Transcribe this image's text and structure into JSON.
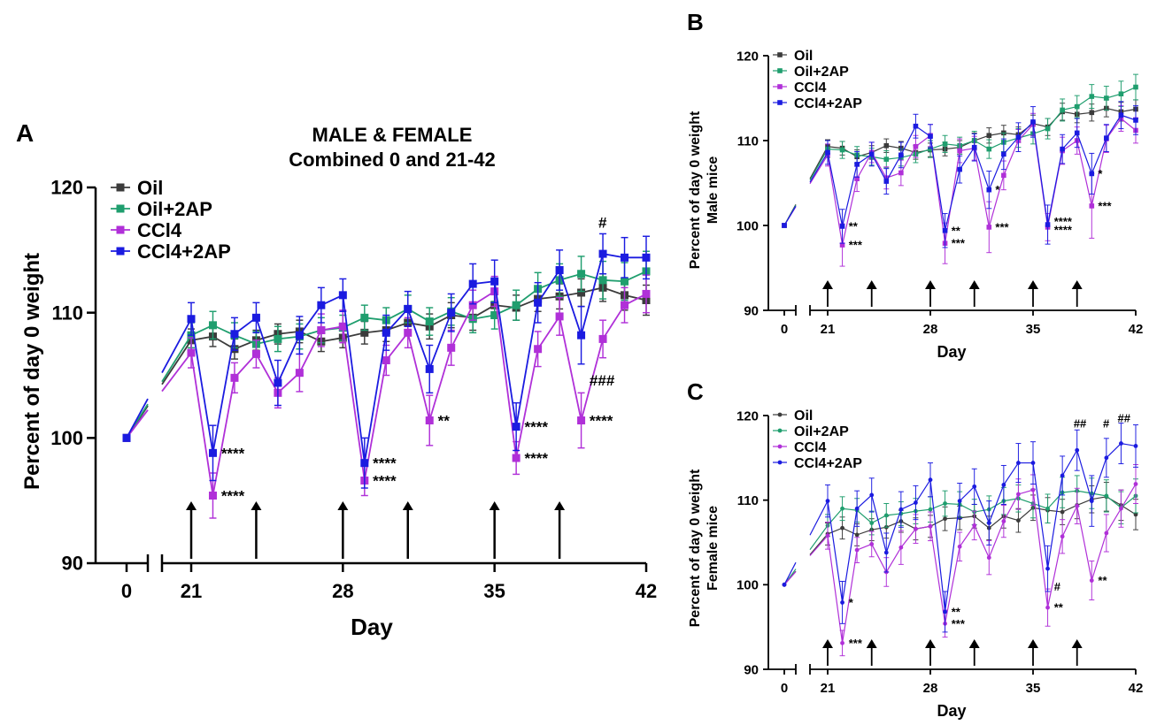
{
  "colors": {
    "Oil": "#3b3b3b",
    "Oil+2AP": "#1f9e6e",
    "CCl4": "#b030d8",
    "CCl4+2AP": "#1b1be0",
    "black": "#000000"
  },
  "chart_data": [
    {
      "id": "A",
      "type": "line",
      "panel_label": "A",
      "title": "MALE & FEMALE",
      "subtitle": "Combined 0 and 21-42",
      "xlabel": "Day",
      "ylabel": "Percent of day 0 weight",
      "ylim": [
        90,
        120
      ],
      "yticks": [
        90,
        100,
        110,
        120
      ],
      "xticks": [
        0,
        21,
        28,
        35,
        42
      ],
      "x_axis_break": "between 0 and 21",
      "marker": "square",
      "grid": false,
      "legend_position": "top-left",
      "arrow_days": [
        21,
        24,
        28,
        31,
        35,
        38
      ],
      "x": [
        0,
        21,
        22,
        23,
        24,
        25,
        26,
        27,
        28,
        29,
        30,
        31,
        32,
        33,
        34,
        35,
        36,
        37,
        38,
        39,
        40,
        41,
        42
      ],
      "series": [
        {
          "name": "Oil",
          "values": [
            100,
            107.8,
            108.1,
            107.1,
            107.8,
            108.3,
            108.5,
            107.7,
            108.0,
            108.4,
            108.6,
            109.2,
            108.9,
            109.8,
            109.6,
            110.6,
            110.4,
            111.1,
            111.3,
            111.6,
            112.0,
            111.4,
            111.0
          ],
          "errors": [
            0,
            0.9,
            0.8,
            0.8,
            0.8,
            0.8,
            0.9,
            0.8,
            0.8,
            0.9,
            0.9,
            0.9,
            1.0,
            1.0,
            1.0,
            1.0,
            1.0,
            1.0,
            1.0,
            1.1,
            1.1,
            1.2,
            1.2
          ]
        },
        {
          "name": "Oil+2AP",
          "values": [
            100,
            108.2,
            109.0,
            108.2,
            107.5,
            107.9,
            108.1,
            108.6,
            108.8,
            109.6,
            109.4,
            110.3,
            109.3,
            110.1,
            109.5,
            109.8,
            110.6,
            111.9,
            112.6,
            113.1,
            112.6,
            112.5,
            113.3
          ],
          "errors": [
            0,
            1.0,
            1.1,
            1.0,
            1.0,
            1.0,
            1.0,
            1.0,
            1.0,
            1.0,
            1.0,
            1.1,
            1.1,
            1.1,
            1.1,
            1.1,
            1.2,
            1.3,
            1.3,
            1.4,
            1.5,
            1.5,
            1.6
          ]
        },
        {
          "name": "CCl4",
          "values": [
            100,
            106.8,
            95.4,
            104.8,
            106.7,
            103.6,
            105.2,
            108.6,
            108.9,
            96.6,
            106.2,
            108.4,
            101.4,
            107.2,
            110.6,
            111.7,
            98.4,
            107.1,
            109.7,
            101.4,
            107.9,
            110.6,
            111.5
          ],
          "errors": [
            0,
            1.2,
            1.8,
            1.2,
            1.1,
            1.2,
            1.5,
            1.3,
            1.3,
            1.2,
            1.2,
            1.2,
            2.0,
            1.4,
            1.2,
            1.2,
            1.3,
            1.4,
            1.5,
            2.2,
            1.5,
            1.4,
            1.5
          ]
        },
        {
          "name": "CCl4+2AP",
          "values": [
            100,
            109.5,
            98.8,
            108.3,
            109.6,
            104.4,
            108.2,
            110.6,
            111.4,
            98.0,
            108.4,
            110.3,
            105.5,
            110.0,
            112.3,
            112.5,
            100.9,
            110.8,
            113.4,
            108.2,
            114.7,
            114.4,
            114.4
          ],
          "errors": [
            0,
            1.3,
            2.2,
            1.3,
            1.2,
            1.8,
            1.5,
            1.4,
            1.3,
            2.0,
            1.4,
            1.4,
            1.9,
            1.5,
            1.6,
            1.7,
            1.9,
            1.6,
            1.6,
            2.3,
            1.6,
            1.6,
            1.7
          ]
        }
      ],
      "annotations": [
        {
          "text": "****",
          "x": 22,
          "y": 98.8,
          "color": "CCl4+2AP"
        },
        {
          "text": "****",
          "x": 22,
          "y": 95.4,
          "color": "CCl4"
        },
        {
          "text": "****",
          "x": 29,
          "y": 98.0,
          "color": "CCl4+2AP"
        },
        {
          "text": "****",
          "x": 29,
          "y": 96.6,
          "color": "CCl4"
        },
        {
          "text": "**",
          "x": 32,
          "y": 101.4,
          "color": "CCl4"
        },
        {
          "text": "****",
          "x": 36,
          "y": 100.9,
          "color": "CCl4+2AP"
        },
        {
          "text": "****",
          "x": 36,
          "y": 98.4,
          "color": "CCl4"
        },
        {
          "text": "###",
          "x": 39,
          "y": 104.6,
          "color": "black"
        },
        {
          "text": "****",
          "x": 39,
          "y": 101.4,
          "color": "CCl4"
        },
        {
          "text": "#",
          "x": 40,
          "y": 116.8,
          "color": "black"
        }
      ]
    },
    {
      "id": "B",
      "type": "line",
      "panel_label": "B",
      "xlabel": "Day",
      "ylabel": "Percent of day 0 weight",
      "ylabel2": "Male mice",
      "ylim": [
        90,
        120
      ],
      "yticks": [
        90,
        100,
        110,
        120
      ],
      "xticks": [
        0,
        21,
        28,
        35,
        42
      ],
      "x_axis_break": "between 0 and 21",
      "marker": "square",
      "grid": false,
      "legend_position": "top-left",
      "arrow_days": [
        21,
        24,
        28,
        31,
        35,
        38
      ],
      "x": [
        0,
        21,
        22,
        23,
        24,
        25,
        26,
        27,
        28,
        29,
        30,
        31,
        32,
        33,
        34,
        35,
        36,
        37,
        38,
        39,
        40,
        41,
        42
      ],
      "series": [
        {
          "name": "Oil",
          "values": [
            100,
            109.3,
            109.1,
            108.1,
            108.6,
            109.4,
            109.1,
            108.6,
            108.9,
            109.0,
            109.2,
            110.0,
            110.6,
            110.9,
            110.7,
            112.0,
            111.6,
            113.4,
            113.1,
            113.3,
            113.8,
            113.4,
            113.7
          ],
          "errors": [
            0,
            0.8,
            0.8,
            0.8,
            0.8,
            0.8,
            0.8,
            0.8,
            0.8,
            0.8,
            0.8,
            0.9,
            0.9,
            0.9,
            0.9,
            1.0,
            1.0,
            1.0,
            1.0,
            1.0,
            1.0,
            1.1,
            1.1
          ]
        },
        {
          "name": "Oil+2AP",
          "values": [
            100,
            109.0,
            108.9,
            108.3,
            108.1,
            107.8,
            108.0,
            108.4,
            109.0,
            109.6,
            109.4,
            110.0,
            109.0,
            109.8,
            110.3,
            110.8,
            111.4,
            113.6,
            114.0,
            115.2,
            115.0,
            115.5,
            116.3
          ],
          "errors": [
            0,
            1.0,
            1.0,
            1.0,
            1.0,
            1.0,
            1.0,
            1.0,
            1.0,
            1.0,
            1.0,
            1.1,
            1.1,
            1.1,
            1.1,
            1.2,
            1.2,
            1.3,
            1.3,
            1.4,
            1.4,
            1.5,
            1.5
          ]
        },
        {
          "name": "CCl4",
          "values": [
            100,
            108.3,
            97.7,
            105.5,
            108.6,
            105.6,
            106.2,
            109.3,
            110.6,
            97.9,
            108.8,
            109.1,
            99.8,
            105.9,
            110.0,
            111.9,
            99.8,
            108.8,
            110.0,
            102.3,
            110.2,
            112.6,
            111.2
          ],
          "errors": [
            0,
            1.3,
            2.5,
            1.5,
            1.2,
            1.3,
            1.5,
            1.3,
            1.3,
            2.4,
            1.4,
            1.4,
            3.0,
            1.7,
            1.3,
            1.3,
            1.6,
            1.6,
            1.6,
            3.8,
            1.6,
            1.5,
            1.5
          ]
        },
        {
          "name": "CCl4+2AP",
          "values": [
            100,
            108.6,
            99.9,
            107.2,
            108.4,
            105.2,
            108.3,
            111.7,
            110.5,
            99.4,
            106.6,
            109.2,
            104.2,
            108.4,
            110.4,
            112.2,
            100.1,
            109.0,
            110.9,
            106.1,
            110.3,
            113.0,
            112.4
          ],
          "errors": [
            0,
            1.4,
            2.0,
            1.5,
            1.4,
            1.5,
            1.5,
            1.4,
            1.4,
            2.0,
            1.6,
            1.6,
            2.2,
            1.8,
            1.7,
            1.8,
            2.3,
            1.7,
            1.7,
            2.4,
            1.6,
            1.6,
            1.7
          ]
        }
      ],
      "annotations": [
        {
          "text": "**",
          "x": 22,
          "y": 99.9,
          "color": "CCl4+2AP"
        },
        {
          "text": "***",
          "x": 22,
          "y": 97.7,
          "color": "CCl4"
        },
        {
          "text": "**",
          "x": 29,
          "y": 99.4,
          "color": "CCl4+2AP"
        },
        {
          "text": "***",
          "x": 29,
          "y": 97.9,
          "color": "CCl4"
        },
        {
          "text": "*",
          "x": 32,
          "y": 104.2,
          "color": "CCl4+2AP"
        },
        {
          "text": "***",
          "x": 32,
          "y": 99.8,
          "color": "CCl4"
        },
        {
          "text": "****",
          "x": 36,
          "y": 100.5,
          "color": "CCl4+2AP"
        },
        {
          "text": "****",
          "x": 36,
          "y": 99.5,
          "color": "CCl4"
        },
        {
          "text": "*",
          "x": 39,
          "y": 106.1,
          "color": "CCl4+2AP"
        },
        {
          "text": "***",
          "x": 39,
          "y": 102.3,
          "color": "CCl4"
        }
      ]
    },
    {
      "id": "C",
      "type": "line",
      "panel_label": "C",
      "xlabel": "Day",
      "ylabel": "Percent of day 0 weight",
      "ylabel2": "Female mice",
      "ylim": [
        90,
        120
      ],
      "yticks": [
        90,
        100,
        110,
        120
      ],
      "xticks": [
        0,
        21,
        28,
        35,
        42
      ],
      "x_axis_break": "between 0 and 21",
      "marker": "circle",
      "grid": false,
      "legend_position": "top-left",
      "arrow_days": [
        21,
        24,
        28,
        31,
        35,
        38
      ],
      "x": [
        0,
        21,
        22,
        23,
        24,
        25,
        26,
        27,
        28,
        29,
        30,
        31,
        32,
        33,
        34,
        35,
        36,
        37,
        38,
        39,
        40,
        41,
        42
      ],
      "series": [
        {
          "name": "Oil",
          "values": [
            100,
            106.0,
            106.7,
            105.9,
            106.5,
            106.8,
            107.5,
            106.6,
            106.9,
            107.8,
            107.9,
            108.1,
            106.7,
            108.1,
            107.6,
            109.1,
            108.8,
            108.6,
            109.4,
            110.1,
            110.4,
            109.4,
            108.3
          ],
          "errors": [
            0,
            1.3,
            1.3,
            1.3,
            1.3,
            1.3,
            1.3,
            1.3,
            1.3,
            1.4,
            1.4,
            1.4,
            1.4,
            1.4,
            1.4,
            1.5,
            1.5,
            1.5,
            1.6,
            1.6,
            1.7,
            1.8,
            1.8
          ]
        },
        {
          "name": "Oil+2AP",
          "values": [
            100,
            107.0,
            109.0,
            108.8,
            107.3,
            108.2,
            108.4,
            108.7,
            108.9,
            109.6,
            109.5,
            108.6,
            108.9,
            109.9,
            110.2,
            109.6,
            109.0,
            110.9,
            111.1,
            110.8,
            110.5,
            109.1,
            110.5
          ],
          "errors": [
            0,
            1.3,
            1.4,
            1.4,
            1.4,
            1.4,
            1.4,
            1.5,
            1.5,
            1.5,
            1.5,
            1.5,
            1.6,
            1.6,
            1.6,
            1.7,
            1.7,
            1.8,
            1.8,
            1.8,
            1.9,
            1.9,
            2.0
          ]
        },
        {
          "name": "CCl4",
          "values": [
            100,
            105.8,
            93.1,
            104.1,
            104.8,
            101.5,
            104.4,
            106.6,
            106.9,
            95.4,
            104.5,
            107.0,
            103.2,
            107.5,
            110.7,
            111.2,
            97.3,
            105.7,
            109.3,
            100.5,
            106.1,
            109.0,
            111.9
          ],
          "errors": [
            0,
            1.6,
            1.5,
            1.5,
            1.5,
            1.7,
            2.0,
            1.7,
            1.7,
            1.6,
            1.7,
            1.7,
            2.0,
            1.9,
            1.8,
            1.8,
            2.2,
            2.0,
            2.1,
            2.3,
            2.2,
            2.2,
            2.3
          ]
        },
        {
          "name": "CCl4+2AP",
          "values": [
            100,
            109.9,
            97.9,
            109.0,
            110.6,
            103.8,
            108.9,
            109.7,
            112.4,
            96.8,
            109.9,
            111.6,
            107.3,
            111.8,
            114.4,
            114.4,
            101.9,
            112.9,
            115.9,
            109.9,
            115.0,
            116.7,
            116.4
          ],
          "errors": [
            0,
            1.9,
            2.5,
            2.1,
            2.0,
            2.3,
            2.1,
            2.0,
            2.0,
            2.4,
            2.1,
            2.1,
            2.6,
            2.3,
            2.3,
            2.5,
            2.7,
            2.3,
            2.4,
            3.0,
            2.3,
            2.4,
            2.5
          ]
        }
      ],
      "annotations": [
        {
          "text": "*",
          "x": 22,
          "y": 97.9,
          "color": "CCl4+2AP"
        },
        {
          "text": "***",
          "x": 22,
          "y": 93.1,
          "color": "CCl4"
        },
        {
          "text": "**",
          "x": 29,
          "y": 96.8,
          "color": "CCl4+2AP"
        },
        {
          "text": "***",
          "x": 29,
          "y": 95.4,
          "color": "CCl4"
        },
        {
          "text": "#",
          "x": 36,
          "y": 99.8,
          "color": "black"
        },
        {
          "text": "**",
          "x": 36,
          "y": 97.3,
          "color": "CCl4"
        },
        {
          "text": "**",
          "x": 39,
          "y": 100.5,
          "color": "CCl4"
        },
        {
          "text": "##",
          "x": 38,
          "y": 118.6,
          "color": "black"
        },
        {
          "text": "#",
          "x": 40,
          "y": 118.6,
          "color": "black"
        },
        {
          "text": "##",
          "x": 41,
          "y": 119.2,
          "color": "black"
        }
      ]
    }
  ]
}
